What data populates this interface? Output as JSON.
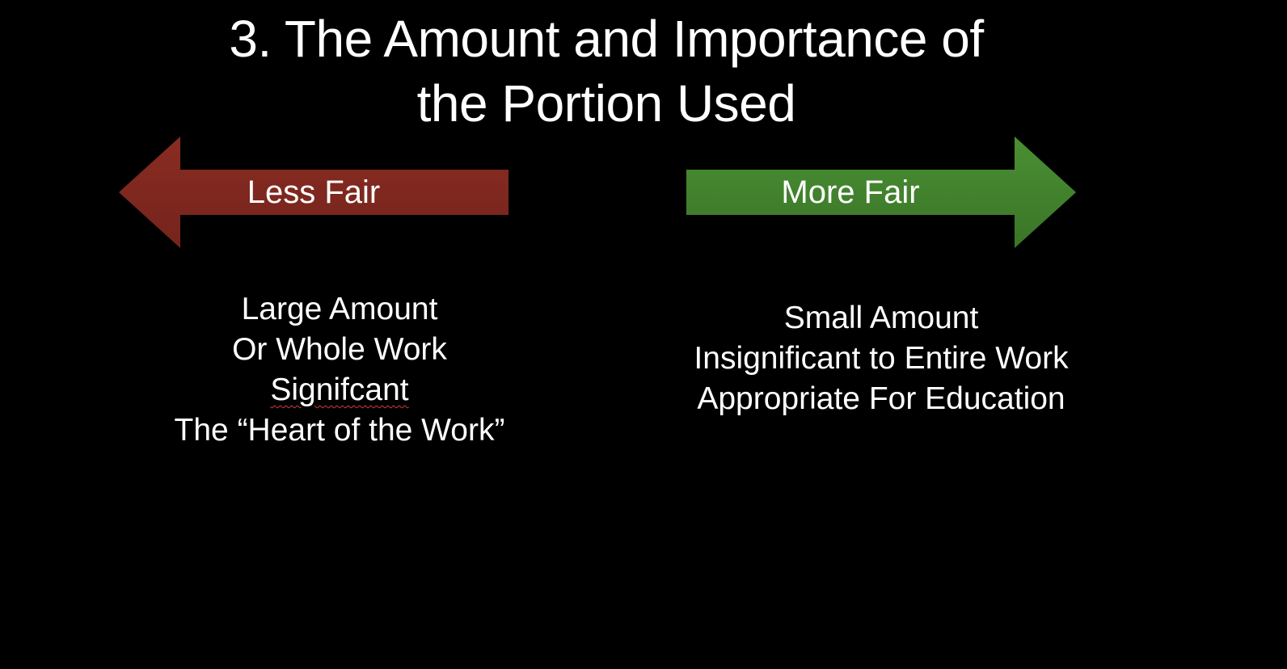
{
  "slide": {
    "title_line1": "3. The Amount and Importance of",
    "title_line2": "the Portion Used"
  },
  "arrows": {
    "left": {
      "label": "Less Fair",
      "color": "#7d2820",
      "direction": "left"
    },
    "right": {
      "label": "More Fair",
      "color": "#3f7f2a",
      "direction": "right"
    }
  },
  "less_fair_list": {
    "items": [
      "Large Amount",
      "Or Whole Work",
      "Signifcant",
      "The “Heart of the Work”"
    ]
  },
  "more_fair_list": {
    "items": [
      "Small Amount",
      "Insignificant to Entire Work",
      "Appropriate For Education"
    ]
  },
  "colors": {
    "background": "#000000",
    "text": "#ffffff",
    "spellcheck_underline": "#d23b3b"
  }
}
